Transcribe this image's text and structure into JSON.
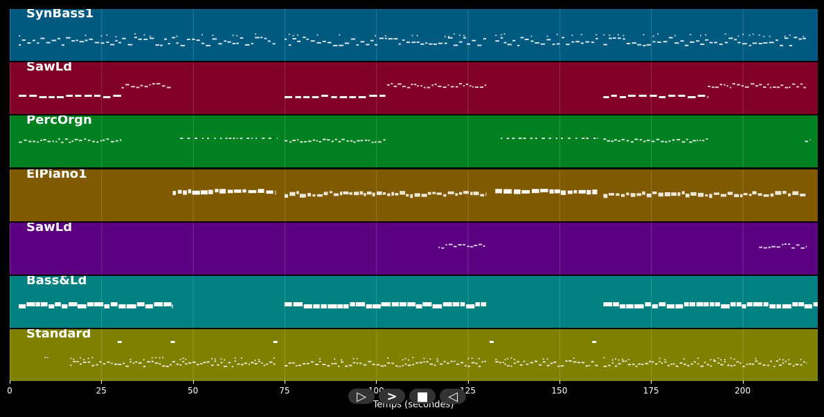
{
  "axis": {
    "xlabel": "Temps (secondes)",
    "ticks": [
      0,
      25,
      50,
      75,
      100,
      125,
      150,
      175,
      200
    ],
    "xlim": [
      0,
      220.5
    ]
  },
  "transport": [
    {
      "name": "play-button",
      "glyph": "▷"
    },
    {
      "name": "forward-button",
      "glyph": ">"
    },
    {
      "name": "stop-button",
      "glyph": "■"
    },
    {
      "name": "rewind-button",
      "glyph": "◁"
    }
  ],
  "tracks": [
    {
      "label": "SynBass1",
      "color": "#005a80",
      "segments": [
        {
          "start": 2.5,
          "end": 72.5,
          "style": "dense"
        },
        {
          "start": 75,
          "end": 130,
          "style": "dense"
        },
        {
          "start": 132.5,
          "end": 160.5,
          "style": "dense"
        },
        {
          "start": 162,
          "end": 217.5,
          "style": "dense"
        }
      ]
    },
    {
      "label": "SawLd",
      "color": "#800029",
      "segments": [
        {
          "start": 2.5,
          "end": 31,
          "style": "thick-low"
        },
        {
          "start": 30.5,
          "end": 44,
          "style": "thin-high"
        },
        {
          "start": 75,
          "end": 102.5,
          "style": "thick-low"
        },
        {
          "start": 103,
          "end": 130,
          "style": "thin-high"
        },
        {
          "start": 162,
          "end": 190.5,
          "style": "thick-low"
        },
        {
          "start": 190.5,
          "end": 217.5,
          "style": "thin-high"
        }
      ]
    },
    {
      "label": "PercOrgn",
      "color": "#008020",
      "segments": [
        {
          "start": 2.5,
          "end": 30.5,
          "style": "thin-mid"
        },
        {
          "start": 46.5,
          "end": 73,
          "style": "sparse"
        },
        {
          "start": 75,
          "end": 102.5,
          "style": "thin-mid"
        },
        {
          "start": 134,
          "end": 160.5,
          "style": "sparse"
        },
        {
          "start": 162,
          "end": 190.5,
          "style": "thin-mid"
        },
        {
          "start": 217,
          "end": 218.5,
          "style": "thin-mid"
        }
      ]
    },
    {
      "label": "ElPiano1",
      "color": "#805a00",
      "segments": [
        {
          "start": 44.5,
          "end": 72.5,
          "style": "block-high"
        },
        {
          "start": 75,
          "end": 130,
          "style": "block"
        },
        {
          "start": 132.5,
          "end": 160.5,
          "style": "block-high"
        },
        {
          "start": 162,
          "end": 217.5,
          "style": "block"
        }
      ]
    },
    {
      "label": "SawLd",
      "color": "#5a0080",
      "segments": [
        {
          "start": 117,
          "end": 130,
          "style": "thin-high"
        },
        {
          "start": 204.5,
          "end": 217.5,
          "style": "thin-high"
        }
      ]
    },
    {
      "label": "Bass&Ld",
      "color": "#008080",
      "segments": [
        {
          "start": 2.5,
          "end": 44.5,
          "style": "bold"
        },
        {
          "start": 75,
          "end": 130,
          "style": "bold"
        },
        {
          "start": 162,
          "end": 220.5,
          "style": "bold"
        }
      ]
    },
    {
      "label": "Standard",
      "color": "#808000",
      "segments": [
        {
          "start": 9.5,
          "end": 10.5,
          "style": "dot-low"
        },
        {
          "start": 16.5,
          "end": 72.5,
          "style": "perc"
        },
        {
          "start": 75,
          "end": 130,
          "style": "perc"
        },
        {
          "start": 132.5,
          "end": 160.5,
          "style": "perc"
        },
        {
          "start": 162,
          "end": 217.5,
          "style": "perc"
        }
      ],
      "accents": [
        30,
        44.5,
        72.5,
        131.5,
        159.5
      ]
    }
  ]
}
